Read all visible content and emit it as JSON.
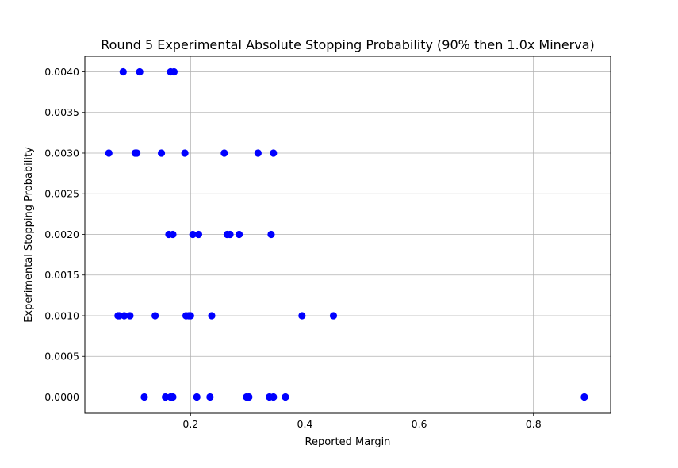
{
  "chart_data": {
    "type": "scatter",
    "title": "Round 5 Experimental Absolute Stopping Probability (90% then 1.0x Minerva)",
    "xlabel": "Reported Margin",
    "ylabel": "Experimental Stopping Probability",
    "xlim": [
      0.015,
      0.935
    ],
    "ylim": [
      -0.0002,
      0.00419
    ],
    "x_ticks": [
      {
        "value": 0.2,
        "label": "0.2"
      },
      {
        "value": 0.4,
        "label": "0.4"
      },
      {
        "value": 0.6,
        "label": "0.6"
      },
      {
        "value": 0.8,
        "label": "0.8"
      }
    ],
    "y_ticks": [
      {
        "value": 0.0,
        "label": "0.0000"
      },
      {
        "value": 0.0005,
        "label": "0.0005"
      },
      {
        "value": 0.001,
        "label": "0.0010"
      },
      {
        "value": 0.0015,
        "label": "0.0015"
      },
      {
        "value": 0.002,
        "label": "0.0020"
      },
      {
        "value": 0.0025,
        "label": "0.0025"
      },
      {
        "value": 0.003,
        "label": "0.0030"
      },
      {
        "value": 0.0035,
        "label": "0.0035"
      },
      {
        "value": 0.004,
        "label": "0.0040"
      }
    ],
    "grid": true,
    "point_color": "#0000ff",
    "points": [
      {
        "x": 0.082,
        "y": 0.004
      },
      {
        "x": 0.111,
        "y": 0.004
      },
      {
        "x": 0.165,
        "y": 0.004
      },
      {
        "x": 0.171,
        "y": 0.004
      },
      {
        "x": 0.057,
        "y": 0.003
      },
      {
        "x": 0.103,
        "y": 0.003
      },
      {
        "x": 0.106,
        "y": 0.003
      },
      {
        "x": 0.149,
        "y": 0.003
      },
      {
        "x": 0.19,
        "y": 0.003
      },
      {
        "x": 0.259,
        "y": 0.003
      },
      {
        "x": 0.318,
        "y": 0.003
      },
      {
        "x": 0.345,
        "y": 0.003
      },
      {
        "x": 0.162,
        "y": 0.002
      },
      {
        "x": 0.169,
        "y": 0.002
      },
      {
        "x": 0.204,
        "y": 0.002
      },
      {
        "x": 0.214,
        "y": 0.002
      },
      {
        "x": 0.264,
        "y": 0.002
      },
      {
        "x": 0.269,
        "y": 0.002
      },
      {
        "x": 0.285,
        "y": 0.002
      },
      {
        "x": 0.341,
        "y": 0.002
      },
      {
        "x": 0.073,
        "y": 0.001
      },
      {
        "x": 0.075,
        "y": 0.001
      },
      {
        "x": 0.084,
        "y": 0.001
      },
      {
        "x": 0.094,
        "y": 0.001
      },
      {
        "x": 0.138,
        "y": 0.001
      },
      {
        "x": 0.192,
        "y": 0.001
      },
      {
        "x": 0.197,
        "y": 0.001
      },
      {
        "x": 0.2,
        "y": 0.001
      },
      {
        "x": 0.237,
        "y": 0.001
      },
      {
        "x": 0.395,
        "y": 0.001
      },
      {
        "x": 0.45,
        "y": 0.001
      },
      {
        "x": 0.119,
        "y": 0.0
      },
      {
        "x": 0.156,
        "y": 0.0
      },
      {
        "x": 0.165,
        "y": 0.0
      },
      {
        "x": 0.169,
        "y": 0.0
      },
      {
        "x": 0.211,
        "y": 0.0
      },
      {
        "x": 0.234,
        "y": 0.0
      },
      {
        "x": 0.298,
        "y": 0.0
      },
      {
        "x": 0.302,
        "y": 0.0
      },
      {
        "x": 0.338,
        "y": 0.0
      },
      {
        "x": 0.345,
        "y": 0.0
      },
      {
        "x": 0.366,
        "y": 0.0
      },
      {
        "x": 0.889,
        "y": 0.0
      }
    ]
  }
}
